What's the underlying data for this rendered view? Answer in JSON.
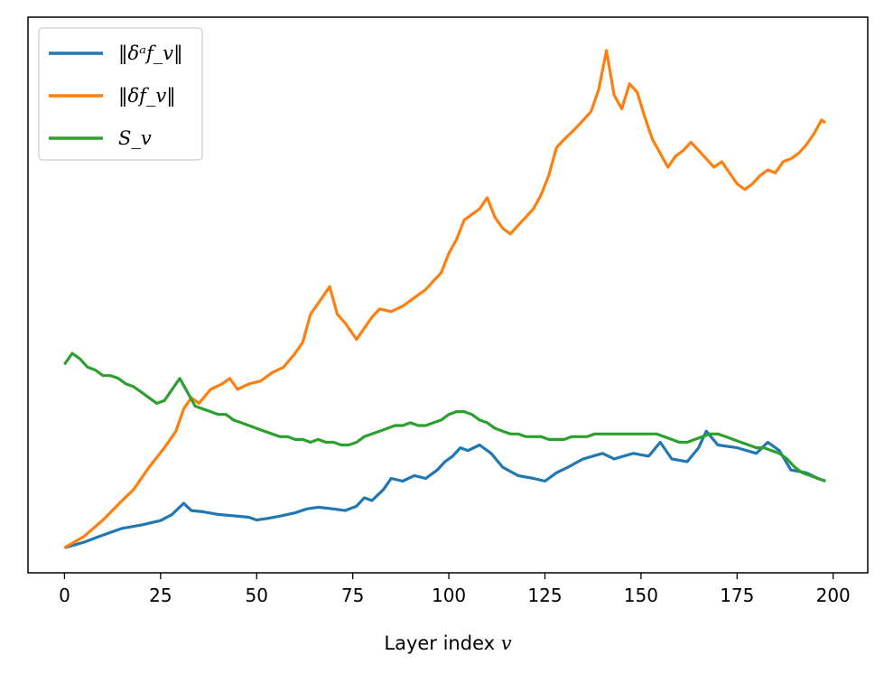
{
  "chart_data": {
    "type": "line",
    "title": "",
    "xlabel": "Layer index v",
    "ylabel": "",
    "xlim": [
      -9.5,
      209
    ],
    "ylim": [
      0,
      1
    ],
    "xticks": [
      0,
      25,
      50,
      75,
      100,
      125,
      150,
      175,
      200
    ],
    "yticks": [],
    "grid": false,
    "legend_position": "upper-left",
    "series": [
      {
        "name": "‖δᵃf_v‖",
        "color": "#1f77b4",
        "points": [
          [
            0,
            0.045
          ],
          [
            5,
            0.055
          ],
          [
            10,
            0.068
          ],
          [
            15,
            0.08
          ],
          [
            20,
            0.086
          ],
          [
            25,
            0.094
          ],
          [
            28,
            0.105
          ],
          [
            31,
            0.125
          ],
          [
            33,
            0.112
          ],
          [
            36,
            0.11
          ],
          [
            40,
            0.105
          ],
          [
            45,
            0.102
          ],
          [
            48,
            0.1
          ],
          [
            50,
            0.095
          ],
          [
            53,
            0.098
          ],
          [
            56,
            0.102
          ],
          [
            60,
            0.108
          ],
          [
            63,
            0.115
          ],
          [
            66,
            0.118
          ],
          [
            70,
            0.115
          ],
          [
            73,
            0.112
          ],
          [
            76,
            0.12
          ],
          [
            78,
            0.135
          ],
          [
            80,
            0.13
          ],
          [
            83,
            0.15
          ],
          [
            85,
            0.17
          ],
          [
            88,
            0.165
          ],
          [
            91,
            0.175
          ],
          [
            94,
            0.17
          ],
          [
            97,
            0.185
          ],
          [
            99,
            0.2
          ],
          [
            101,
            0.21
          ],
          [
            103,
            0.225
          ],
          [
            105,
            0.22
          ],
          [
            108,
            0.23
          ],
          [
            111,
            0.215
          ],
          [
            114,
            0.19
          ],
          [
            118,
            0.175
          ],
          [
            122,
            0.17
          ],
          [
            125,
            0.165
          ],
          [
            128,
            0.18
          ],
          [
            131,
            0.19
          ],
          [
            135,
            0.205
          ],
          [
            140,
            0.215
          ],
          [
            143,
            0.205
          ],
          [
            148,
            0.215
          ],
          [
            152,
            0.21
          ],
          [
            155,
            0.235
          ],
          [
            158,
            0.205
          ],
          [
            162,
            0.2
          ],
          [
            165,
            0.225
          ],
          [
            167,
            0.255
          ],
          [
            170,
            0.23
          ],
          [
            175,
            0.225
          ],
          [
            180,
            0.215
          ],
          [
            183,
            0.235
          ],
          [
            186,
            0.22
          ],
          [
            189,
            0.185
          ],
          [
            193,
            0.18
          ],
          [
            196,
            0.17
          ],
          [
            198,
            0.165
          ]
        ]
      },
      {
        "name": "‖δf_v‖",
        "color": "#ff7f0e",
        "points": [
          [
            0,
            0.045
          ],
          [
            5,
            0.065
          ],
          [
            10,
            0.095
          ],
          [
            15,
            0.13
          ],
          [
            18,
            0.15
          ],
          [
            22,
            0.19
          ],
          [
            26,
            0.225
          ],
          [
            29,
            0.255
          ],
          [
            31,
            0.295
          ],
          [
            33,
            0.315
          ],
          [
            35,
            0.305
          ],
          [
            38,
            0.33
          ],
          [
            41,
            0.34
          ],
          [
            43,
            0.35
          ],
          [
            45,
            0.33
          ],
          [
            48,
            0.34
          ],
          [
            51,
            0.345
          ],
          [
            54,
            0.36
          ],
          [
            57,
            0.37
          ],
          [
            60,
            0.395
          ],
          [
            62,
            0.415
          ],
          [
            64,
            0.465
          ],
          [
            66,
            0.485
          ],
          [
            69,
            0.515
          ],
          [
            71,
            0.465
          ],
          [
            73,
            0.45
          ],
          [
            76,
            0.42
          ],
          [
            78,
            0.44
          ],
          [
            80,
            0.46
          ],
          [
            82,
            0.475
          ],
          [
            85,
            0.47
          ],
          [
            88,
            0.48
          ],
          [
            91,
            0.495
          ],
          [
            94,
            0.51
          ],
          [
            96,
            0.525
          ],
          [
            98,
            0.54
          ],
          [
            100,
            0.575
          ],
          [
            102,
            0.6
          ],
          [
            104,
            0.635
          ],
          [
            106,
            0.645
          ],
          [
            108,
            0.655
          ],
          [
            110,
            0.675
          ],
          [
            112,
            0.64
          ],
          [
            114,
            0.62
          ],
          [
            116,
            0.61
          ],
          [
            118,
            0.625
          ],
          [
            120,
            0.64
          ],
          [
            122,
            0.655
          ],
          [
            124,
            0.68
          ],
          [
            126,
            0.715
          ],
          [
            128,
            0.765
          ],
          [
            130,
            0.78
          ],
          [
            133,
            0.8
          ],
          [
            135,
            0.815
          ],
          [
            137,
            0.83
          ],
          [
            139,
            0.87
          ],
          [
            141,
            0.94
          ],
          [
            143,
            0.86
          ],
          [
            145,
            0.835
          ],
          [
            147,
            0.88
          ],
          [
            149,
            0.865
          ],
          [
            151,
            0.82
          ],
          [
            153,
            0.78
          ],
          [
            155,
            0.755
          ],
          [
            157,
            0.73
          ],
          [
            159,
            0.75
          ],
          [
            161,
            0.76
          ],
          [
            163,
            0.775
          ],
          [
            165,
            0.76
          ],
          [
            167,
            0.745
          ],
          [
            169,
            0.73
          ],
          [
            171,
            0.74
          ],
          [
            173,
            0.72
          ],
          [
            175,
            0.7
          ],
          [
            177,
            0.69
          ],
          [
            179,
            0.7
          ],
          [
            181,
            0.715
          ],
          [
            183,
            0.725
          ],
          [
            185,
            0.72
          ],
          [
            187,
            0.74
          ],
          [
            189,
            0.745
          ],
          [
            191,
            0.755
          ],
          [
            193,
            0.77
          ],
          [
            195,
            0.79
          ],
          [
            197,
            0.815
          ],
          [
            198,
            0.81
          ]
        ]
      },
      {
        "name": "S_v",
        "color": "#2ca02c",
        "points": [
          [
            0,
            0.375
          ],
          [
            2,
            0.395
          ],
          [
            4,
            0.385
          ],
          [
            6,
            0.37
          ],
          [
            8,
            0.365
          ],
          [
            10,
            0.355
          ],
          [
            12,
            0.355
          ],
          [
            14,
            0.35
          ],
          [
            16,
            0.34
          ],
          [
            18,
            0.335
          ],
          [
            20,
            0.325
          ],
          [
            22,
            0.315
          ],
          [
            24,
            0.305
          ],
          [
            26,
            0.31
          ],
          [
            28,
            0.33
          ],
          [
            30,
            0.35
          ],
          [
            32,
            0.325
          ],
          [
            34,
            0.3
          ],
          [
            36,
            0.295
          ],
          [
            38,
            0.29
          ],
          [
            40,
            0.285
          ],
          [
            42,
            0.285
          ],
          [
            44,
            0.275
          ],
          [
            46,
            0.27
          ],
          [
            48,
            0.265
          ],
          [
            50,
            0.26
          ],
          [
            52,
            0.255
          ],
          [
            54,
            0.25
          ],
          [
            56,
            0.245
          ],
          [
            58,
            0.245
          ],
          [
            60,
            0.24
          ],
          [
            62,
            0.24
          ],
          [
            64,
            0.235
          ],
          [
            66,
            0.24
          ],
          [
            68,
            0.235
          ],
          [
            70,
            0.235
          ],
          [
            72,
            0.23
          ],
          [
            74,
            0.23
          ],
          [
            76,
            0.235
          ],
          [
            78,
            0.245
          ],
          [
            80,
            0.25
          ],
          [
            82,
            0.255
          ],
          [
            84,
            0.26
          ],
          [
            86,
            0.265
          ],
          [
            88,
            0.265
          ],
          [
            90,
            0.27
          ],
          [
            92,
            0.265
          ],
          [
            94,
            0.265
          ],
          [
            96,
            0.27
          ],
          [
            98,
            0.275
          ],
          [
            100,
            0.285
          ],
          [
            102,
            0.29
          ],
          [
            104,
            0.29
          ],
          [
            106,
            0.285
          ],
          [
            108,
            0.275
          ],
          [
            110,
            0.27
          ],
          [
            112,
            0.26
          ],
          [
            114,
            0.255
          ],
          [
            116,
            0.25
          ],
          [
            118,
            0.25
          ],
          [
            120,
            0.245
          ],
          [
            122,
            0.245
          ],
          [
            124,
            0.245
          ],
          [
            126,
            0.24
          ],
          [
            128,
            0.24
          ],
          [
            130,
            0.24
          ],
          [
            132,
            0.245
          ],
          [
            134,
            0.245
          ],
          [
            136,
            0.245
          ],
          [
            138,
            0.25
          ],
          [
            140,
            0.25
          ],
          [
            142,
            0.25
          ],
          [
            144,
            0.25
          ],
          [
            146,
            0.25
          ],
          [
            148,
            0.25
          ],
          [
            150,
            0.25
          ],
          [
            152,
            0.25
          ],
          [
            154,
            0.25
          ],
          [
            156,
            0.245
          ],
          [
            158,
            0.24
          ],
          [
            160,
            0.235
          ],
          [
            162,
            0.235
          ],
          [
            164,
            0.24
          ],
          [
            166,
            0.245
          ],
          [
            168,
            0.25
          ],
          [
            170,
            0.25
          ],
          [
            172,
            0.245
          ],
          [
            174,
            0.24
          ],
          [
            176,
            0.235
          ],
          [
            178,
            0.23
          ],
          [
            180,
            0.225
          ],
          [
            182,
            0.225
          ],
          [
            184,
            0.22
          ],
          [
            186,
            0.215
          ],
          [
            188,
            0.205
          ],
          [
            190,
            0.19
          ],
          [
            192,
            0.18
          ],
          [
            194,
            0.175
          ],
          [
            196,
            0.17
          ],
          [
            198,
            0.165
          ]
        ]
      }
    ]
  }
}
